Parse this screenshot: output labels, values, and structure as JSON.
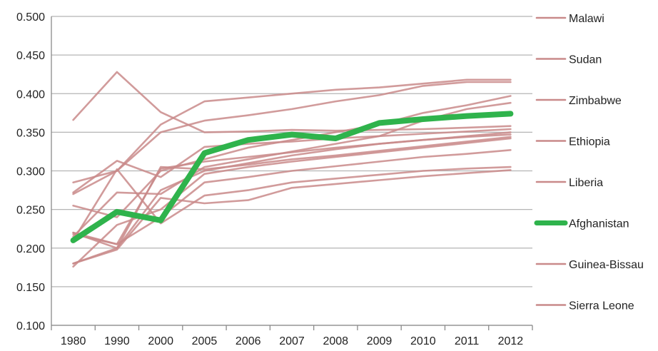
{
  "chart_data": {
    "type": "line",
    "categories": [
      "1980",
      "1990",
      "2000",
      "2005",
      "2006",
      "2007",
      "2008",
      "2009",
      "2010",
      "2011",
      "2012"
    ],
    "ylim": [
      0.1,
      0.5
    ],
    "yticks": [
      "0.100",
      "0.150",
      "0.200",
      "0.250",
      "0.300",
      "0.350",
      "0.400",
      "0.450",
      "0.500"
    ],
    "grid": true,
    "legend_position": "right",
    "legend": [
      "Malawi",
      "Sudan",
      "Zimbabwe",
      "Ethiopia",
      "Liberia",
      "Afghanistan",
      "Guinea-Bissau",
      "Sierra Leone"
    ],
    "highlight_color": "#2fb34c",
    "other_color": "#c98a8a",
    "series": [
      {
        "name": "Afghanistan",
        "highlight": true,
        "values": [
          0.21,
          0.247,
          0.236,
          0.323,
          0.34,
          0.347,
          0.342,
          0.362,
          0.367,
          0.371,
          0.374
        ]
      },
      {
        "values": [
          0.366,
          0.428,
          0.376,
          0.35,
          0.351,
          0.353,
          0.352,
          0.353,
          0.354,
          0.356,
          0.358
        ]
      },
      {
        "values": [
          0.285,
          0.3,
          0.36,
          0.39,
          0.395,
          0.4,
          0.405,
          0.408,
          0.413,
          0.418,
          0.418
        ]
      },
      {
        "values": [
          0.27,
          0.3,
          0.35,
          0.365,
          0.372,
          0.38,
          0.39,
          0.398,
          0.41,
          0.415,
          0.415
        ]
      },
      {
        "values": [
          0.272,
          0.313,
          0.292,
          0.331,
          0.335,
          0.338,
          0.342,
          0.345,
          0.348,
          0.351,
          0.354
        ]
      },
      {
        "values": [
          0.255,
          0.24,
          0.3,
          0.315,
          0.33,
          0.34,
          0.35,
          0.36,
          0.375,
          0.385,
          0.397
        ]
      },
      {
        "values": [
          0.215,
          0.272,
          0.27,
          0.305,
          0.315,
          0.325,
          0.335,
          0.345,
          0.365,
          0.38,
          0.388
        ]
      },
      {
        "values": [
          0.22,
          0.205,
          0.303,
          0.312,
          0.318,
          0.324,
          0.33,
          0.335,
          0.34,
          0.344,
          0.347
        ]
      },
      {
        "values": [
          0.18,
          0.2,
          0.275,
          0.3,
          0.31,
          0.32,
          0.328,
          0.335,
          0.34,
          0.345,
          0.35
        ]
      },
      {
        "values": [
          0.176,
          0.23,
          0.25,
          0.296,
          0.305,
          0.312,
          0.318,
          0.324,
          0.33,
          0.336,
          0.342
        ]
      },
      {
        "values": [
          0.22,
          0.2,
          0.305,
          0.302,
          0.308,
          0.315,
          0.32,
          0.326,
          0.332,
          0.338,
          0.344
        ]
      },
      {
        "values": [
          0.218,
          0.205,
          0.24,
          0.285,
          0.292,
          0.3,
          0.306,
          0.312,
          0.318,
          0.322,
          0.327
        ]
      },
      {
        "values": [
          0.21,
          0.302,
          0.232,
          0.268,
          0.275,
          0.285,
          0.29,
          0.295,
          0.3,
          0.303,
          0.305
        ]
      },
      {
        "values": [
          0.18,
          0.198,
          0.265,
          0.258,
          0.262,
          0.278,
          0.283,
          0.288,
          0.293,
          0.297,
          0.301
        ]
      }
    ]
  }
}
